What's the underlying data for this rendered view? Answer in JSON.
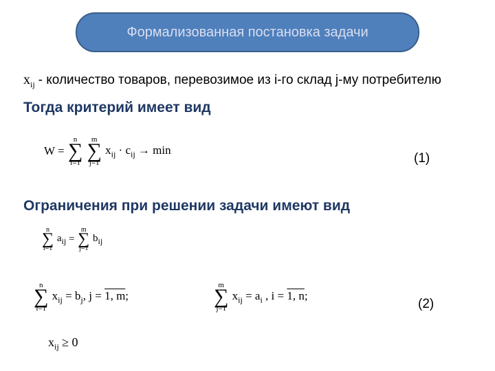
{
  "colors": {
    "title_bg": "#4f80bc",
    "title_border": "#395e89",
    "title_text": "#d9def0",
    "heading": "#1f3864",
    "body_text": "#000000",
    "background": "#ffffff"
  },
  "fonts": {
    "heading_family": "Segoe UI, Arial, sans-serif",
    "body_family": "Segoe UI, Arial, sans-serif",
    "math_family": "Times New Roman, serif",
    "title_size_pt": 15,
    "heading_size_pt": 16,
    "body_size_pt": 14,
    "math_size_pt": 13
  },
  "title": "Формализованная постановка задачи",
  "definition": {
    "var_base": "x",
    "var_sub": "ij",
    "text": " - количество товаров, перевозимое из i-го склад j-му потребителю"
  },
  "heading_criterion": "Тогда критерий имеет вид",
  "heading_constraints": "Ограничения при решении задачи имеют вид",
  "equations": {
    "objective": {
      "lhs": "W = ",
      "sum1": {
        "upper": "n",
        "lower": "i=1"
      },
      "sum2": {
        "upper": "m",
        "lower": "j=1"
      },
      "body": "x",
      "body_sub": "ij",
      "dot": " · c",
      "dot_sub": "ij",
      "arrow": " → min",
      "label": "(1)"
    },
    "balance": {
      "sum1": {
        "upper": "n",
        "lower": "i=1"
      },
      "a": "a",
      "a_sub": "ij",
      "eq": " = ",
      "sum2": {
        "upper": "m",
        "lower": "j=1"
      },
      "b": "b",
      "b_sub": "ij"
    },
    "row_supply": {
      "sum": {
        "upper": "n",
        "lower": "i=1"
      },
      "x": "x",
      "x_sub": "ij",
      "eq": " = b",
      "eq_sub": "j",
      "range_prefix": ",   j = ",
      "range": "1, m",
      "suffix": ";"
    },
    "col_demand": {
      "sum": {
        "upper": "m",
        "lower": "j=1"
      },
      "x": "x",
      "x_sub": "ij",
      "eq": " = a",
      "eq_sub": "i",
      "range_prefix": " ,   i = ",
      "range": "1, n",
      "suffix": ";"
    },
    "nonneg": {
      "x": "x",
      "x_sub": "ij",
      "rel": " ≥ 0"
    },
    "label2": "(2)"
  }
}
